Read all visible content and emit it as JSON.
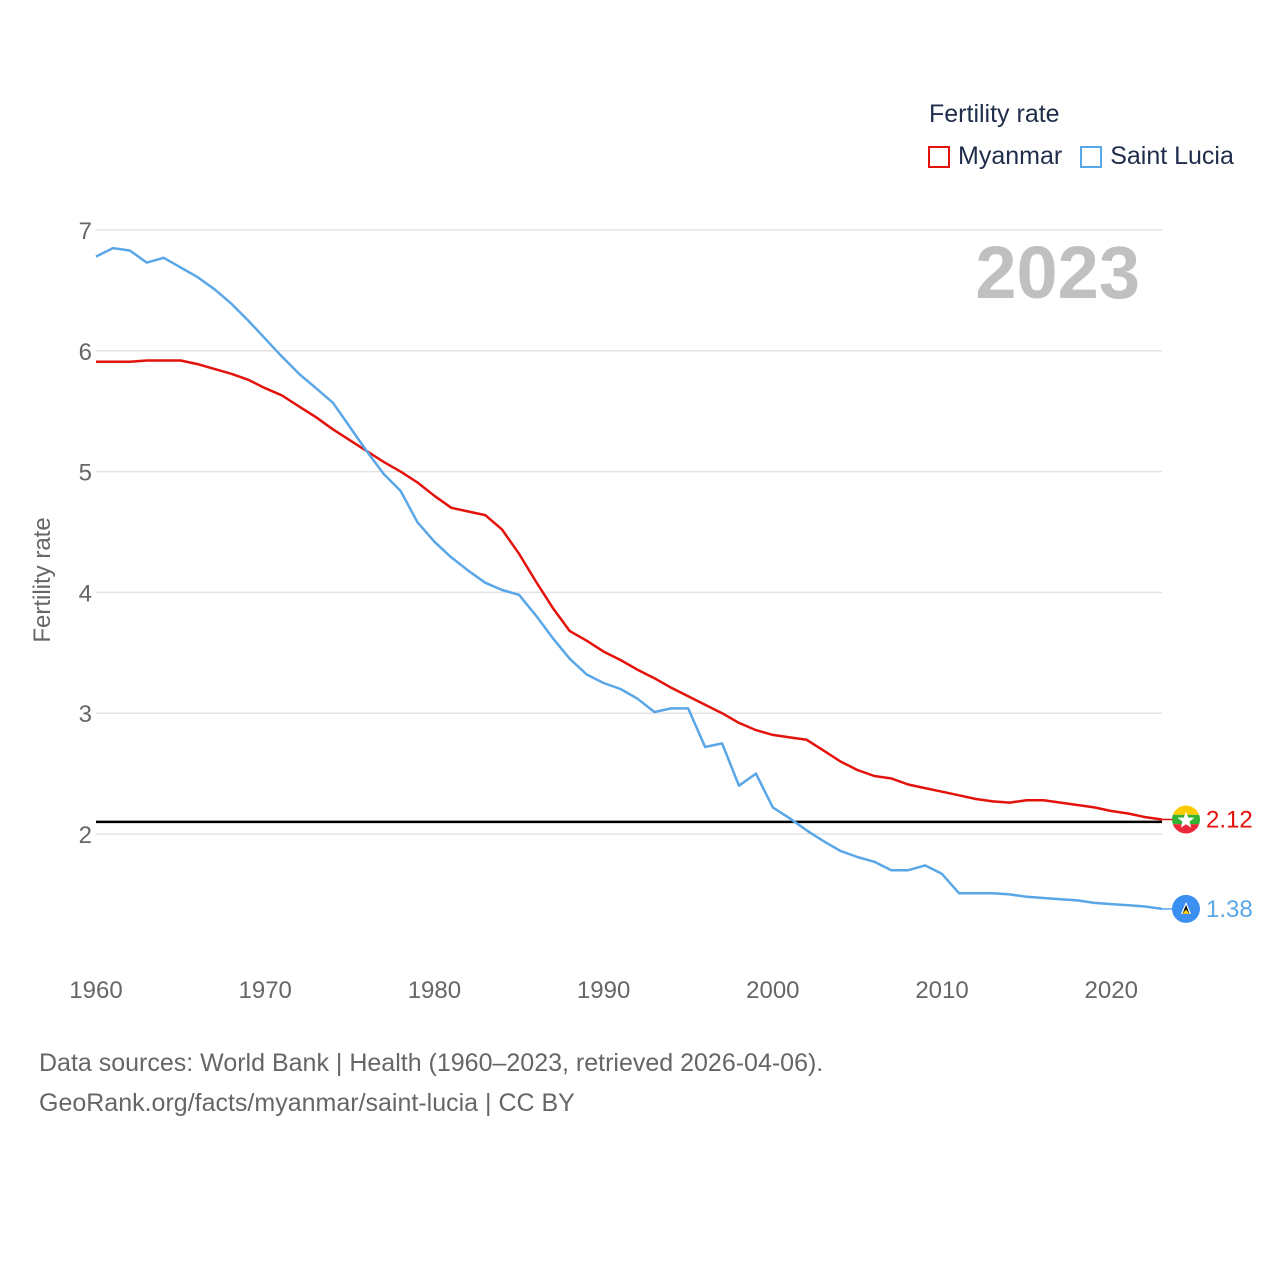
{
  "legend": {
    "title": "Fertility rate",
    "items": [
      {
        "label": "Myanmar",
        "color": "#e3120b"
      },
      {
        "label": "Saint Lucia",
        "color": "#5aa7e8"
      }
    ]
  },
  "source": {
    "line1": "Data sources: World Bank | Health (1960–2023, retrieved 2026-04-06).",
    "line2": "GeoRank.org/facts/myanmar/saint-lucia | CC BY"
  },
  "chart_data": {
    "type": "line",
    "title": "Fertility rate",
    "year_label": "2023",
    "xlabel": "",
    "ylabel": "Fertility rate",
    "xlim": [
      1960,
      2023
    ],
    "ylim": [
      1,
      7
    ],
    "xticks": [
      1960,
      1970,
      1980,
      1990,
      2000,
      2010,
      2020
    ],
    "yticks": [
      2,
      3,
      4,
      5,
      6,
      7
    ],
    "reference_line": 2.1,
    "x": [
      1960,
      1961,
      1962,
      1963,
      1964,
      1965,
      1966,
      1967,
      1968,
      1969,
      1970,
      1971,
      1972,
      1973,
      1974,
      1975,
      1976,
      1977,
      1978,
      1979,
      1980,
      1981,
      1982,
      1983,
      1984,
      1985,
      1986,
      1987,
      1988,
      1989,
      1990,
      1991,
      1992,
      1993,
      1994,
      1995,
      1996,
      1997,
      1998,
      1999,
      2000,
      2001,
      2002,
      2003,
      2004,
      2005,
      2006,
      2007,
      2008,
      2009,
      2010,
      2011,
      2012,
      2013,
      2014,
      2015,
      2016,
      2017,
      2018,
      2019,
      2020,
      2021,
      2022,
      2023
    ],
    "series": [
      {
        "name": "Myanmar",
        "color": "#e3120b",
        "end_label": "2.12",
        "flag": "myanmar-flag",
        "values": [
          5.91,
          5.91,
          5.91,
          5.92,
          5.92,
          5.92,
          5.89,
          5.85,
          5.81,
          5.76,
          5.69,
          5.63,
          5.54,
          5.45,
          5.35,
          5.26,
          5.17,
          5.08,
          5.0,
          4.91,
          4.8,
          4.7,
          4.67,
          4.64,
          4.52,
          4.32,
          4.09,
          3.87,
          3.68,
          3.6,
          3.51,
          3.44,
          3.36,
          3.29,
          3.21,
          3.14,
          3.07,
          3.0,
          2.92,
          2.86,
          2.82,
          2.8,
          2.78,
          2.69,
          2.6,
          2.53,
          2.48,
          2.46,
          2.41,
          2.38,
          2.35,
          2.32,
          2.29,
          2.27,
          2.26,
          2.28,
          2.28,
          2.26,
          2.24,
          2.22,
          2.19,
          2.17,
          2.14,
          2.12
        ]
      },
      {
        "name": "Saint Lucia",
        "color": "#5aa7e8",
        "end_label": "1.38",
        "flag": "saint-lucia-flag",
        "values": [
          6.78,
          6.85,
          6.83,
          6.73,
          6.77,
          6.69,
          6.61,
          6.51,
          6.39,
          6.25,
          6.1,
          5.95,
          5.81,
          5.69,
          5.57,
          5.37,
          5.17,
          4.98,
          4.84,
          4.58,
          4.42,
          4.29,
          4.18,
          4.08,
          4.02,
          3.98,
          3.81,
          3.62,
          3.45,
          3.32,
          3.25,
          3.2,
          3.12,
          3.01,
          3.04,
          3.04,
          2.72,
          2.75,
          2.4,
          2.5,
          2.22,
          2.13,
          2.03,
          1.94,
          1.86,
          1.81,
          1.77,
          1.7,
          1.7,
          1.74,
          1.67,
          1.51,
          1.51,
          1.51,
          1.5,
          1.48,
          1.47,
          1.46,
          1.45,
          1.43,
          1.42,
          1.41,
          1.4,
          1.38
        ]
      }
    ]
  }
}
